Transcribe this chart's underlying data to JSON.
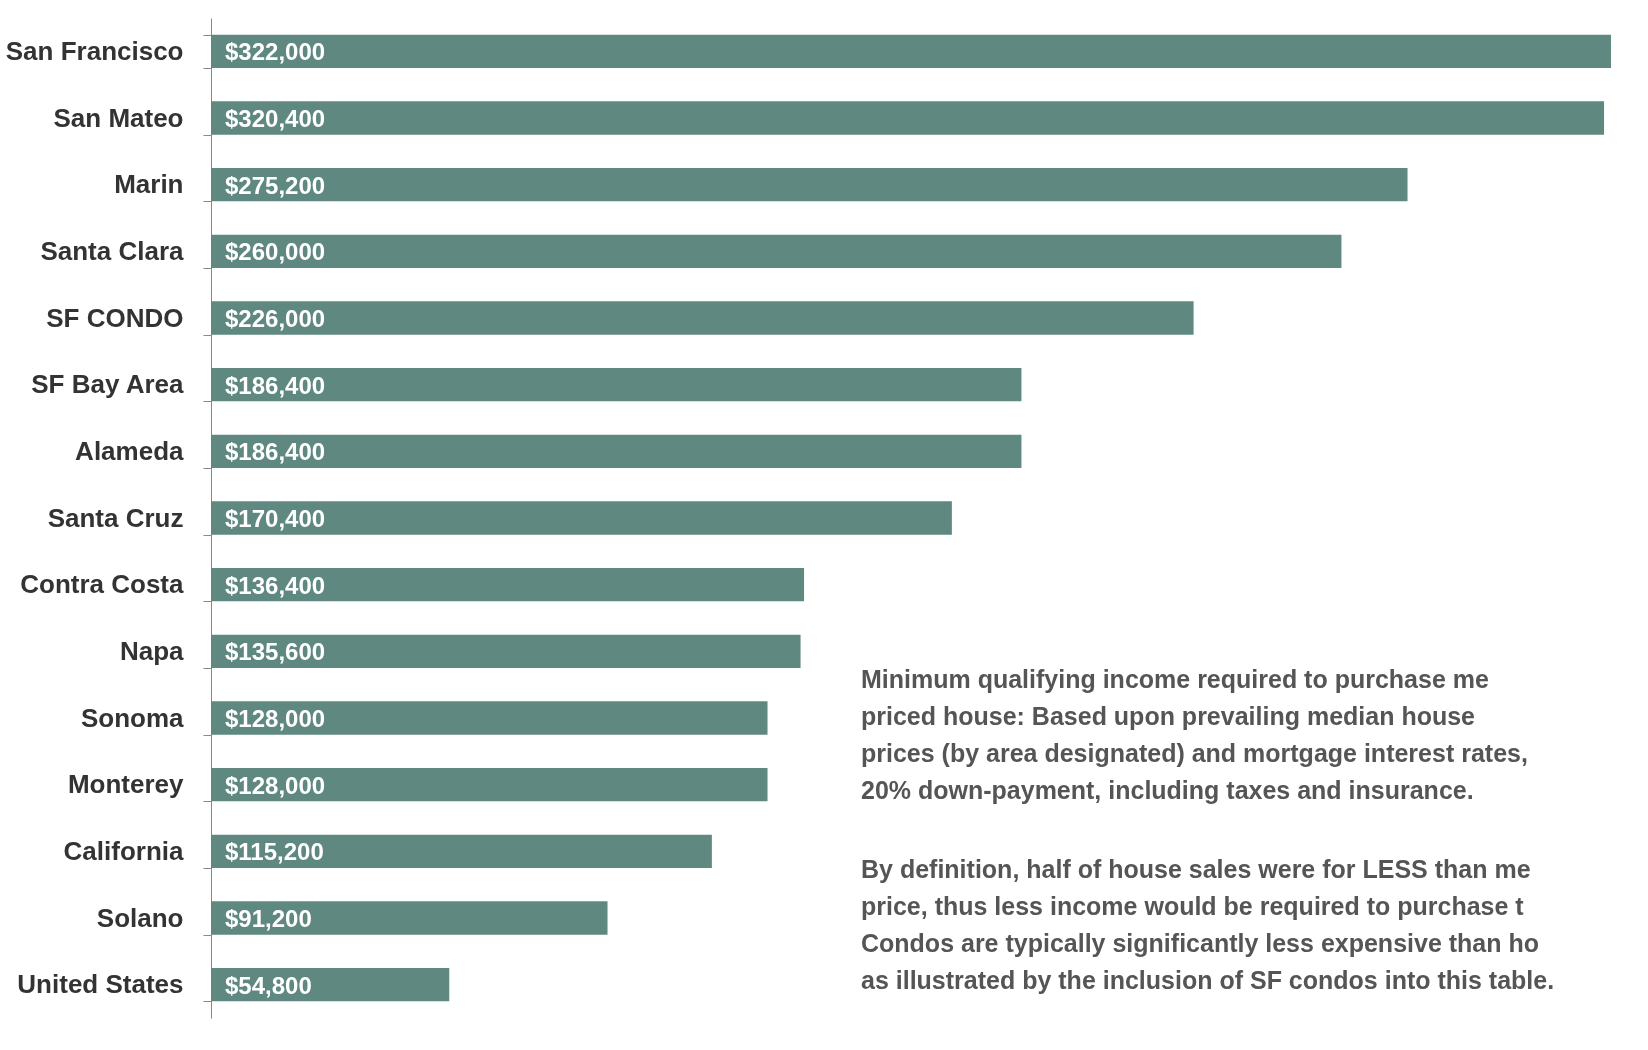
{
  "chart_data": {
    "type": "bar",
    "orientation": "horizontal",
    "data_labels": true,
    "color": "#5f8880",
    "categories": [
      "San Francisco",
      "San Mateo",
      "Marin",
      "Santa Clara",
      "SF CONDO",
      "SF Bay Area",
      "Alameda",
      "Santa Cruz",
      "Contra Costa",
      "Napa",
      "Sonoma",
      "Monterey",
      "California",
      "Solano",
      "United States"
    ],
    "values": [
      322000,
      320400,
      275200,
      260000,
      226000,
      186400,
      186400,
      170400,
      136400,
      135600,
      128000,
      128000,
      115200,
      91200,
      54800
    ],
    "value_labels": [
      "$322,000",
      "$320,400",
      "$275,200",
      "$260,000",
      "$226,000",
      "$186,400",
      "$186,400",
      "$170,400",
      "$136,400",
      "$135,600",
      "$128,000",
      "$128,000",
      "$115,200",
      "$91,200",
      "$54,800"
    ],
    "annotations": [
      "Minimum qualifying income required to purchase me\npriced house: Based upon prevailing median house\nprices (by area designated) and mortgage interest rates,\n20% down-payment, including taxes and insurance.",
      "By definition, half of house sales were for LESS than me\nprice, thus less income would be required to purchase t\nCondos are typically significantly less expensive than ho\nas illustrated by the inclusion of SF condos into this table."
    ]
  }
}
